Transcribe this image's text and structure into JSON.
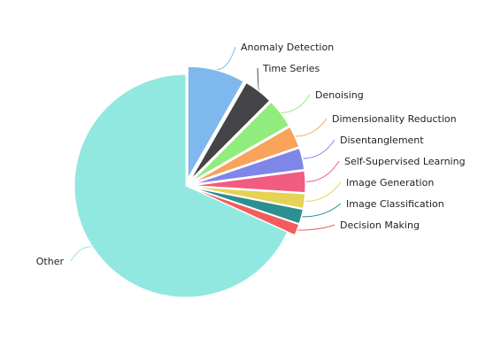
{
  "chart_data": {
    "type": "pie",
    "title": "",
    "legend": "none",
    "slices": [
      {
        "label": "Anomaly Detection",
        "value": 8.3,
        "color": "#7eb8ec"
      },
      {
        "label": "Time Series",
        "value": 4.2,
        "color": "#434348"
      },
      {
        "label": "Denoising",
        "value": 4.2,
        "color": "#90ed7d"
      },
      {
        "label": "Dimensionality Reduction",
        "value": 3.1,
        "color": "#f7a35c"
      },
      {
        "label": "Disentanglement",
        "value": 3.1,
        "color": "#8085e9"
      },
      {
        "label": "Self-Supervised Learning",
        "value": 3.1,
        "color": "#f15c80"
      },
      {
        "label": "Image Generation",
        "value": 2.1,
        "color": "#e4d354"
      },
      {
        "label": "Image Classification",
        "value": 2.1,
        "color": "#2b908f"
      },
      {
        "label": "Decision Making",
        "value": 1.6,
        "color": "#f45b5b"
      },
      {
        "label": "Other",
        "value": 68.2,
        "color": "#91e8e1"
      }
    ]
  }
}
